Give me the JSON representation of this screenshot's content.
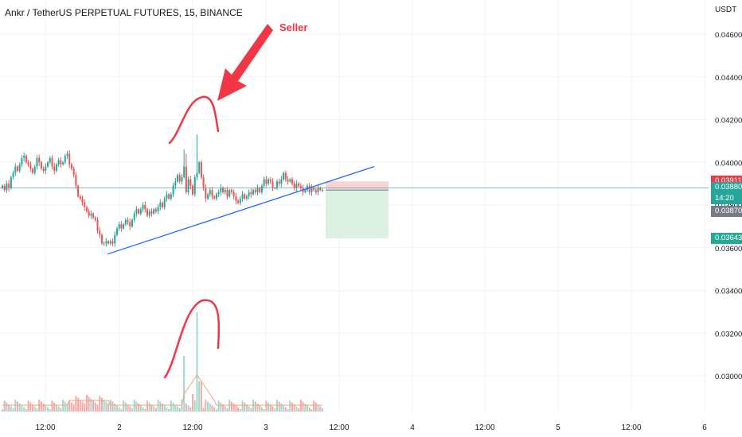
{
  "header": {
    "title": "Ankr / TetherUS PERPETUAL FUTURES, 15, BINANCE",
    "currency": "USDT"
  },
  "annotation": {
    "seller_label": "Seller"
  },
  "price_labels": {
    "stop": "0.03911",
    "last": "0.03880",
    "countdown": "14:20",
    "entry": "0.03870",
    "target": "0.03643"
  },
  "colors": {
    "up": "#26a69a",
    "down": "#ef5350",
    "annotation": "#f23645",
    "trendline": "#2962ff",
    "stop_zone": "#f7d4d6",
    "target_zone": "#dcf1e4",
    "last_price_line": "#26a69a",
    "grid": "#f0f3fa",
    "axis_text": "#131722"
  },
  "chart_data": {
    "type": "candlestick",
    "title": "Ankr / TetherUS PERPETUAL FUTURES, 15, BINANCE",
    "y_unit": "USDT",
    "ylim": [
      0.0275,
      0.0472
    ],
    "y_ticks": [
      "0.04600",
      "0.04400",
      "0.04200",
      "0.04000",
      "0.03800",
      "0.03600",
      "0.03400",
      "0.03200",
      "0.03000"
    ],
    "x_ticks": [
      "12:00",
      "2",
      "12:00",
      "3",
      "12:00",
      "4",
      "12:00",
      "5",
      "12:00",
      "6"
    ],
    "grid": true,
    "candle_closes": [
      0.0389,
      0.0387,
      0.039,
      0.0388,
      0.0393,
      0.0395,
      0.0398,
      0.0396,
      0.0399,
      0.0402,
      0.0403,
      0.04,
      0.0399,
      0.0397,
      0.0395,
      0.0398,
      0.0402,
      0.04,
      0.0397,
      0.0396,
      0.0398,
      0.04,
      0.0402,
      0.0398,
      0.0396,
      0.0399,
      0.0401,
      0.0399,
      0.04,
      0.0403,
      0.0404,
      0.0399,
      0.0397,
      0.0394,
      0.0389,
      0.0384,
      0.0383,
      0.0381,
      0.0379,
      0.0377,
      0.0375,
      0.0376,
      0.0374,
      0.0373,
      0.0368,
      0.0366,
      0.0362,
      0.0362,
      0.0363,
      0.0362,
      0.0363,
      0.0362,
      0.0366,
      0.0369,
      0.0371,
      0.0369,
      0.0371,
      0.0373,
      0.0372,
      0.037,
      0.0373,
      0.0376,
      0.0378,
      0.0376,
      0.0378,
      0.038,
      0.0378,
      0.0375,
      0.0377,
      0.0376,
      0.0378,
      0.0377,
      0.0379,
      0.0381,
      0.0379,
      0.0383,
      0.0385,
      0.0383,
      0.0385,
      0.0389,
      0.0391,
      0.0394,
      0.0391,
      0.0393,
      0.0398,
      0.0386,
      0.0392,
      0.0389,
      0.0385,
      0.0393,
      0.0395,
      0.04,
      0.0393,
      0.0388,
      0.0383,
      0.0385,
      0.0387,
      0.0384,
      0.0383,
      0.0385,
      0.0386,
      0.0388,
      0.0386,
      0.0387,
      0.0384,
      0.0387,
      0.0386,
      0.0384,
      0.0382,
      0.0381,
      0.0383,
      0.0385,
      0.0383,
      0.0384,
      0.0386,
      0.0385,
      0.0387,
      0.0386,
      0.0388,
      0.0386,
      0.0389,
      0.0392,
      0.039,
      0.0392,
      0.0391,
      0.0388,
      0.0388,
      0.0391,
      0.039,
      0.0392,
      0.0395,
      0.0392,
      0.0391,
      0.0392,
      0.039,
      0.0388,
      0.039,
      0.0389,
      0.0388,
      0.0386,
      0.0387,
      0.0389,
      0.0386,
      0.0388,
      0.0387,
      0.0386,
      0.0388,
      0.0387,
      0.0387
    ],
    "trendline": {
      "from_price": 0.0357,
      "to_price": 0.0398
    },
    "position": {
      "entry": 0.0387,
      "stop": 0.03911,
      "target": 0.03643
    },
    "volume_spikes_at": [
      "around 12:00 on 2"
    ]
  }
}
